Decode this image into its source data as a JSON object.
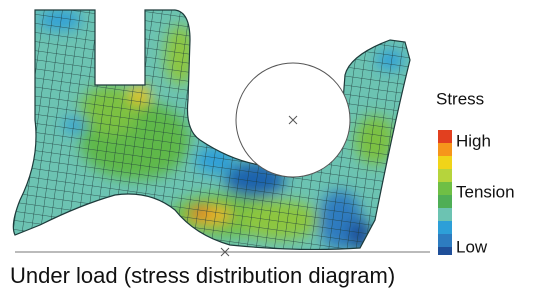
{
  "legend": {
    "title": "Stress",
    "high": "High",
    "middle": "Tension",
    "low": "Low"
  },
  "caption": "Under load (stress distribution diagram)"
}
